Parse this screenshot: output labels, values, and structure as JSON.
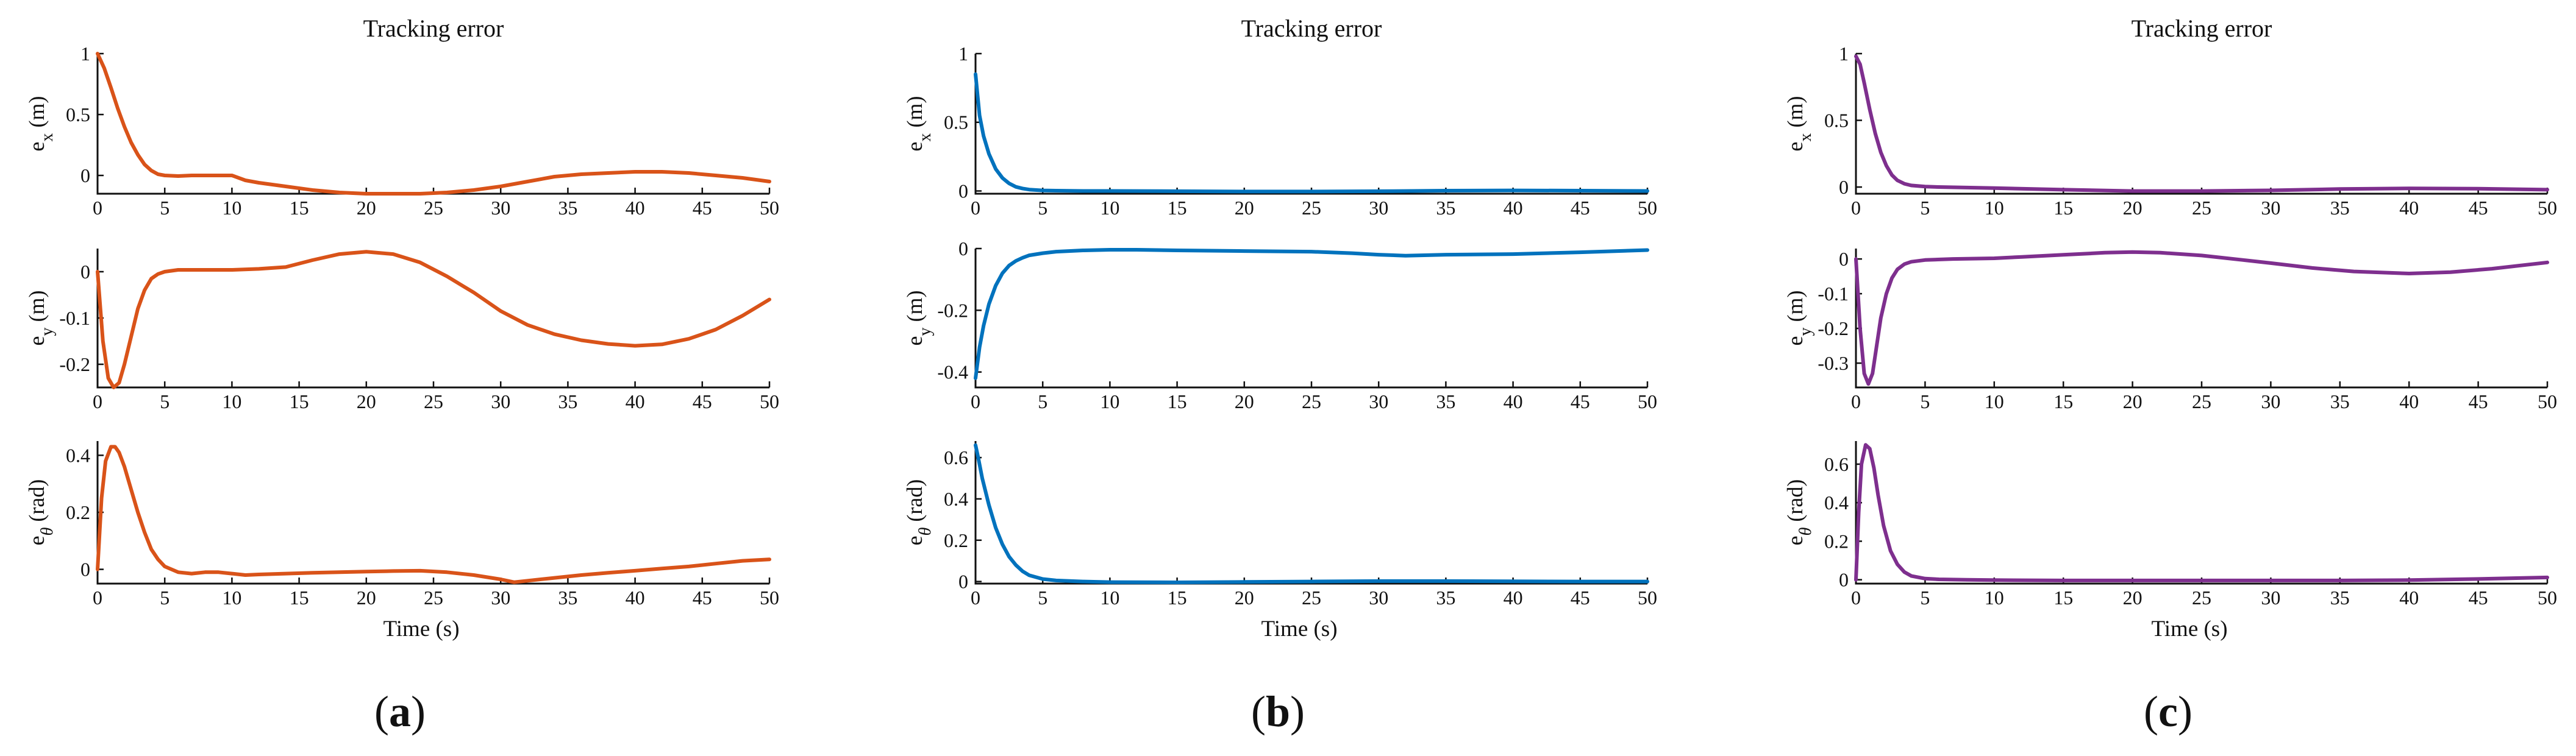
{
  "chart_data": [
    {
      "type": "line",
      "panel_label": "a",
      "title": "Tracking error",
      "xlabel": "Time (s)",
      "color": "#D95319",
      "subplots": [
        {
          "ylabel_main": "e",
          "ylabel_sub": "x",
          "ylabel_unit": " (m)",
          "xlim": [
            0,
            50
          ],
          "ylim": [
            -0.15,
            1.0
          ],
          "xticks": [
            0,
            5,
            10,
            15,
            20,
            25,
            30,
            35,
            40,
            45,
            50
          ],
          "yticks": [
            0,
            0.5,
            1
          ],
          "series": [
            {
              "x": [
                0,
                0.5,
                1,
                1.5,
                2,
                2.5,
                3,
                3.5,
                4,
                4.5,
                5,
                6,
                7,
                8,
                9,
                10,
                11,
                12,
                14,
                16,
                18,
                20,
                22,
                24,
                26,
                28,
                30,
                32,
                34,
                36,
                38,
                40,
                42,
                44,
                46,
                48,
                50
              ],
              "y": [
                1.0,
                0.88,
                0.72,
                0.55,
                0.4,
                0.27,
                0.17,
                0.09,
                0.04,
                0.01,
                0.0,
                -0.005,
                0.0,
                0.0,
                0.0,
                0.0,
                -0.04,
                -0.06,
                -0.09,
                -0.12,
                -0.14,
                -0.15,
                -0.15,
                -0.15,
                -0.14,
                -0.12,
                -0.09,
                -0.05,
                -0.01,
                0.01,
                0.02,
                0.03,
                0.03,
                0.02,
                0.0,
                -0.02,
                -0.05
              ]
            }
          ]
        },
        {
          "ylabel_main": "e",
          "ylabel_sub": "y",
          "ylabel_unit": " (m)",
          "xlim": [
            0,
            50
          ],
          "ylim": [
            -0.25,
            0.05
          ],
          "xticks": [
            0,
            5,
            10,
            15,
            20,
            25,
            30,
            35,
            40,
            45,
            50
          ],
          "yticks": [
            -0.2,
            -0.1,
            0
          ],
          "series": [
            {
              "x": [
                0,
                0.4,
                0.8,
                1.2,
                1.6,
                2,
                2.5,
                3,
                3.5,
                4,
                4.5,
                5,
                6,
                8,
                10,
                12,
                14,
                16,
                18,
                20,
                22,
                24,
                26,
                28,
                30,
                32,
                34,
                36,
                38,
                40,
                42,
                44,
                46,
                48,
                50
              ],
              "y": [
                0.0,
                -0.15,
                -0.23,
                -0.25,
                -0.24,
                -0.2,
                -0.14,
                -0.08,
                -0.04,
                -0.015,
                -0.005,
                0.0,
                0.004,
                0.004,
                0.004,
                0.006,
                0.01,
                0.025,
                0.038,
                0.043,
                0.038,
                0.02,
                -0.01,
                -0.045,
                -0.085,
                -0.115,
                -0.135,
                -0.148,
                -0.156,
                -0.16,
                -0.157,
                -0.145,
                -0.125,
                -0.095,
                -0.06
              ]
            }
          ]
        },
        {
          "ylabel_main": "e",
          "ylabel_sub": "θ",
          "ylabel_unit": " (rad)",
          "xlim": [
            0,
            50
          ],
          "ylim": [
            -0.05,
            0.45
          ],
          "xticks": [
            0,
            5,
            10,
            15,
            20,
            25,
            30,
            35,
            40,
            45,
            50
          ],
          "yticks": [
            0,
            0.2,
            0.4
          ],
          "series": [
            {
              "x": [
                0,
                0.3,
                0.6,
                1,
                1.3,
                1.6,
                2,
                2.5,
                3,
                3.5,
                4,
                4.5,
                5,
                6,
                7,
                8,
                9,
                10,
                11,
                12,
                14,
                16,
                18,
                20,
                22,
                24,
                26,
                28,
                30,
                31,
                32,
                34,
                36,
                38,
                40,
                42,
                44,
                46,
                48,
                50
              ],
              "y": [
                0.0,
                0.25,
                0.38,
                0.43,
                0.43,
                0.41,
                0.36,
                0.28,
                0.2,
                0.13,
                0.07,
                0.035,
                0.01,
                -0.01,
                -0.015,
                -0.01,
                -0.01,
                -0.015,
                -0.02,
                -0.018,
                -0.015,
                -0.012,
                -0.01,
                -0.008,
                -0.006,
                -0.005,
                -0.01,
                -0.02,
                -0.035,
                -0.045,
                -0.04,
                -0.03,
                -0.02,
                -0.012,
                -0.005,
                0.003,
                0.01,
                0.02,
                0.03,
                0.035
              ]
            }
          ]
        }
      ]
    },
    {
      "type": "line",
      "panel_label": "b",
      "title": "Tracking error",
      "xlabel": "Time (s)",
      "color": "#0072BD",
      "subplots": [
        {
          "ylabel_main": "e",
          "ylabel_sub": "x",
          "ylabel_unit": " (m)",
          "xlim": [
            0,
            50
          ],
          "ylim": [
            -0.02,
            1.0
          ],
          "xticks": [
            0,
            5,
            10,
            15,
            20,
            25,
            30,
            35,
            40,
            45,
            50
          ],
          "yticks": [
            0,
            0.5,
            1
          ],
          "series": [
            {
              "x": [
                0,
                0.3,
                0.6,
                1,
                1.5,
                2,
                2.5,
                3,
                3.5,
                4,
                5,
                6,
                8,
                10,
                15,
                20,
                25,
                30,
                35,
                40,
                45,
                50
              ],
              "y": [
                0.85,
                0.55,
                0.4,
                0.27,
                0.16,
                0.095,
                0.055,
                0.03,
                0.018,
                0.01,
                0.004,
                0.002,
                0.0,
                0.0,
                -0.002,
                -0.004,
                -0.004,
                -0.002,
                0.002,
                0.004,
                0.002,
                0.0
              ]
            }
          ]
        },
        {
          "ylabel_main": "e",
          "ylabel_sub": "y",
          "ylabel_unit": " (m)",
          "xlim": [
            0,
            50
          ],
          "ylim": [
            -0.45,
            0.0
          ],
          "xticks": [
            0,
            5,
            10,
            15,
            20,
            25,
            30,
            35,
            40,
            45,
            50
          ],
          "yticks": [
            -0.4,
            -0.2,
            0
          ],
          "series": [
            {
              "x": [
                0,
                0.3,
                0.6,
                1,
                1.5,
                2,
                2.5,
                3,
                3.5,
                4,
                5,
                6,
                8,
                10,
                12,
                15,
                20,
                25,
                28,
                30,
                32,
                35,
                40,
                45,
                50
              ],
              "y": [
                -0.42,
                -0.32,
                -0.25,
                -0.18,
                -0.12,
                -0.08,
                -0.055,
                -0.04,
                -0.03,
                -0.022,
                -0.015,
                -0.01,
                -0.006,
                -0.004,
                -0.004,
                -0.006,
                -0.008,
                -0.01,
                -0.015,
                -0.02,
                -0.023,
                -0.02,
                -0.018,
                -0.012,
                -0.005
              ]
            }
          ]
        },
        {
          "ylabel_main": "e",
          "ylabel_sub": "θ",
          "ylabel_unit": " (rad)",
          "xlim": [
            0,
            50
          ],
          "ylim": [
            -0.01,
            0.68
          ],
          "xticks": [
            0,
            5,
            10,
            15,
            20,
            25,
            30,
            35,
            40,
            45,
            50
          ],
          "yticks": [
            0,
            0.2,
            0.4,
            0.6
          ],
          "series": [
            {
              "x": [
                0,
                0.2,
                0.5,
                1,
                1.5,
                2,
                2.5,
                3,
                3.5,
                4,
                5,
                6,
                8,
                10,
                15,
                20,
                25,
                30,
                35,
                40,
                45,
                50
              ],
              "y": [
                0.66,
                0.6,
                0.5,
                0.37,
                0.26,
                0.18,
                0.12,
                0.08,
                0.05,
                0.03,
                0.012,
                0.005,
                0.0,
                -0.003,
                -0.004,
                -0.002,
                0.0,
                0.002,
                0.002,
                0.001,
                0.0,
                0.0
              ]
            }
          ]
        }
      ]
    },
    {
      "type": "line",
      "panel_label": "c",
      "title": "Tracking error",
      "xlabel": "Time (s)",
      "color": "#7E2F8E",
      "subplots": [
        {
          "ylabel_main": "e",
          "ylabel_sub": "x",
          "ylabel_unit": " (m)",
          "xlim": [
            0,
            50
          ],
          "ylim": [
            -0.05,
            1.0
          ],
          "xticks": [
            0,
            5,
            10,
            15,
            20,
            25,
            30,
            35,
            40,
            45,
            50
          ],
          "yticks": [
            0,
            0.5,
            1
          ],
          "series": [
            {
              "x": [
                0,
                0.3,
                0.6,
                1,
                1.4,
                1.8,
                2.2,
                2.6,
                3,
                3.5,
                4,
                5,
                6,
                8,
                10,
                15,
                20,
                25,
                30,
                35,
                40,
                45,
                50
              ],
              "y": [
                0.98,
                0.92,
                0.78,
                0.58,
                0.4,
                0.26,
                0.16,
                0.09,
                0.05,
                0.025,
                0.012,
                0.004,
                0.0,
                -0.004,
                -0.008,
                -0.02,
                -0.03,
                -0.03,
                -0.025,
                -0.015,
                -0.01,
                -0.012,
                -0.02
              ]
            }
          ]
        },
        {
          "ylabel_main": "e",
          "ylabel_sub": "y",
          "ylabel_unit": " (m)",
          "xlim": [
            0,
            50
          ],
          "ylim": [
            -0.37,
            0.03
          ],
          "xticks": [
            0,
            5,
            10,
            15,
            20,
            25,
            30,
            35,
            40,
            45,
            50
          ],
          "yticks": [
            -0.3,
            -0.2,
            -0.1,
            0
          ],
          "series": [
            {
              "x": [
                0,
                0.3,
                0.6,
                0.9,
                1.2,
                1.5,
                1.8,
                2.2,
                2.6,
                3,
                3.5,
                4,
                5,
                7,
                10,
                12,
                15,
                18,
                20,
                22,
                25,
                28,
                30,
                33,
                36,
                40,
                43,
                46,
                50
              ],
              "y": [
                0.0,
                -0.2,
                -0.33,
                -0.36,
                -0.33,
                -0.25,
                -0.17,
                -0.1,
                -0.055,
                -0.03,
                -0.015,
                -0.008,
                -0.003,
                0.0,
                0.002,
                0.006,
                0.012,
                0.018,
                0.02,
                0.018,
                0.01,
                -0.003,
                -0.012,
                -0.026,
                -0.036,
                -0.042,
                -0.038,
                -0.028,
                -0.01
              ]
            }
          ]
        },
        {
          "ylabel_main": "e",
          "ylabel_sub": "θ",
          "ylabel_unit": " (rad)",
          "xlim": [
            0,
            50
          ],
          "ylim": [
            -0.02,
            0.72
          ],
          "xticks": [
            0,
            5,
            10,
            15,
            20,
            25,
            30,
            35,
            40,
            45,
            50
          ],
          "yticks": [
            0,
            0.2,
            0.4,
            0.6
          ],
          "series": [
            {
              "x": [
                0,
                0.2,
                0.4,
                0.7,
                1,
                1.3,
                1.6,
                2,
                2.5,
                3,
                3.5,
                4,
                5,
                6,
                8,
                10,
                15,
                20,
                25,
                30,
                35,
                40,
                45,
                50
              ],
              "y": [
                0.0,
                0.35,
                0.6,
                0.7,
                0.68,
                0.58,
                0.44,
                0.28,
                0.15,
                0.08,
                0.04,
                0.02,
                0.006,
                0.002,
                0.0,
                -0.002,
                -0.004,
                -0.004,
                -0.004,
                -0.004,
                -0.004,
                -0.002,
                0.004,
                0.012
              ]
            }
          ]
        }
      ]
    }
  ]
}
